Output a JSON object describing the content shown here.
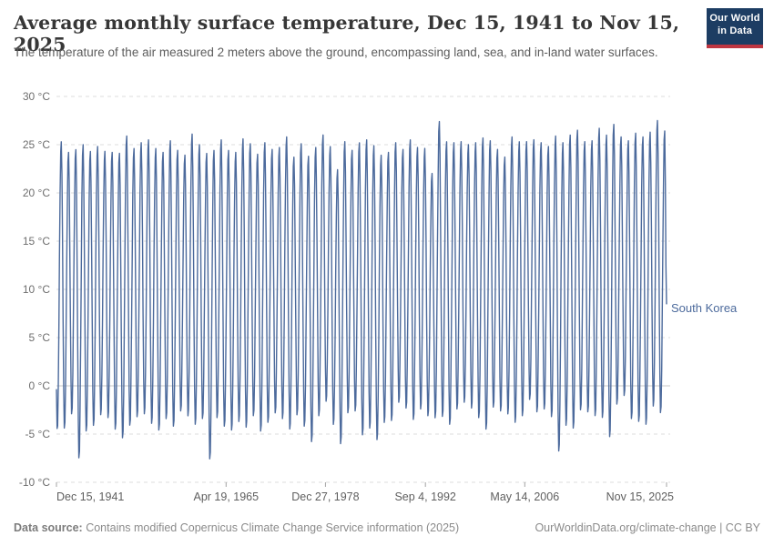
{
  "header": {
    "title": "Average monthly surface temperature, Dec 15, 1941 to Nov 15, 2025",
    "subtitle": "The temperature of the air measured 2 meters above the ground, encompassing land, sea, and in-land water surfaces.",
    "logo": {
      "line1": "Our World",
      "line2": "in Data"
    }
  },
  "colors": {
    "line": "#4c6a9c",
    "grid": "#dcdcdc",
    "zero_line": "#c8c8c8",
    "tick_mark": "#a3a3a3",
    "logo_bg": "#1d3d63",
    "logo_bar": "#bf3641"
  },
  "chart_data": {
    "type": "line",
    "title": "Average monthly surface temperature, Dec 15, 1941 to Nov 15, 2025",
    "series_label": "South Korea",
    "legend_position": "right",
    "grid": true,
    "y_axis": {
      "min": -10,
      "max": 30,
      "unit": "°C",
      "ticks": [
        {
          "value": 30,
          "label": "30 °C"
        },
        {
          "value": 25,
          "label": "25 °C"
        },
        {
          "value": 20,
          "label": "20 °C"
        },
        {
          "value": 15,
          "label": "15 °C"
        },
        {
          "value": 10,
          "label": "10 °C"
        },
        {
          "value": 5,
          "label": "5 °C"
        },
        {
          "value": 0,
          "label": "0 °C"
        },
        {
          "value": -5,
          "label": "-5 °C"
        },
        {
          "value": -10,
          "label": "-10 °C"
        }
      ]
    },
    "x_axis": {
      "total_months": 1007,
      "ticks": [
        {
          "label": "Dec 15, 1941",
          "month_index": 0
        },
        {
          "label": "Apr 19, 1965",
          "month_index": 280
        },
        {
          "label": "Dec 27, 1978",
          "month_index": 444
        },
        {
          "label": "Sep 4, 1992",
          "month_index": 609
        },
        {
          "label": "May 14, 2006",
          "month_index": 773
        },
        {
          "label": "Nov 15, 2025",
          "month_index": 1007
        }
      ]
    },
    "start_point": {
      "date": "Dec 1941",
      "value": -0.4
    },
    "end_point": {
      "date": "Nov 2025",
      "value": 8.5
    },
    "years": [
      1942,
      1943,
      1944,
      1945,
      1946,
      1947,
      1948,
      1949,
      1950,
      1951,
      1952,
      1953,
      1954,
      1955,
      1956,
      1957,
      1958,
      1959,
      1960,
      1961,
      1962,
      1963,
      1964,
      1965,
      1966,
      1967,
      1968,
      1969,
      1970,
      1971,
      1972,
      1973,
      1974,
      1975,
      1976,
      1977,
      1978,
      1979,
      1980,
      1981,
      1982,
      1983,
      1984,
      1985,
      1986,
      1987,
      1988,
      1989,
      1990,
      1991,
      1992,
      1993,
      1994,
      1995,
      1996,
      1997,
      1998,
      1999,
      2000,
      2001,
      2002,
      2003,
      2004,
      2005,
      2006,
      2007,
      2008,
      2009,
      2010,
      2011,
      2012,
      2013,
      2014,
      2015,
      2016,
      2017,
      2018,
      2019,
      2020,
      2021,
      2022,
      2023,
      2024,
      2025
    ],
    "summer_max": [
      25.4,
      24.3,
      24.6,
      25.1,
      24.4,
      24.9,
      24.4,
      24.3,
      24.2,
      26.0,
      24.7,
      25.3,
      25.6,
      24.7,
      24.3,
      25.5,
      24.5,
      24.0,
      26.2,
      25.1,
      24.2,
      24.5,
      25.6,
      24.5,
      24.3,
      25.7,
      25.2,
      24.1,
      25.3,
      24.6,
      24.8,
      25.9,
      23.8,
      25.2,
      23.9,
      24.8,
      26.1,
      24.9,
      22.5,
      25.4,
      24.5,
      25.3,
      25.6,
      25.0,
      24.0,
      24.3,
      25.3,
      24.6,
      25.6,
      24.8,
      24.7,
      22.1,
      27.5,
      25.4,
      25.3,
      25.4,
      25.1,
      25.3,
      25.8,
      25.5,
      24.6,
      23.8,
      25.9,
      25.4,
      25.4,
      25.6,
      25.3,
      24.9,
      26.0,
      25.3,
      26.1,
      26.6,
      25.4,
      25.5,
      26.8,
      26.1,
      27.2,
      25.9,
      25.5,
      26.3,
      25.9,
      26.4,
      27.6,
      26.6
    ],
    "winter_min": [
      -5.0,
      -4.6,
      -3.1,
      -7.7,
      -4.9,
      -4.3,
      -3.2,
      -3.5,
      -4.7,
      -5.6,
      -4.3,
      -3.4,
      -3.1,
      -4.1,
      -4.8,
      -3.6,
      -4.4,
      -2.8,
      -3.3,
      -4.2,
      -3.6,
      -7.8,
      -3.5,
      -4.4,
      -4.8,
      -3.9,
      -4.5,
      -3.3,
      -4.9,
      -4.0,
      -3.0,
      -3.6,
      -4.7,
      -3.2,
      -4.4,
      -6.0,
      -3.3,
      -1.8,
      -4.2,
      -6.2,
      -3.0,
      -2.8,
      -5.3,
      -4.6,
      -5.8,
      -4.0,
      -3.8,
      -1.9,
      -2.5,
      -3.7,
      -2.6,
      -3.3,
      -3.5,
      -3.4,
      -4.2,
      -2.6,
      -1.9,
      -2.5,
      -3.5,
      -4.7,
      -2.4,
      -2.8,
      -3.1,
      -4.0,
      -3.3,
      -1.6,
      -2.9,
      -2.6,
      -3.4,
      -7.0,
      -4.3,
      -4.6,
      -2.7,
      -2.9,
      -3.3,
      -3.5,
      -5.5,
      -2.1,
      -1.2,
      -3.6,
      -3.9,
      -4.2,
      -2.3,
      -3.0
    ]
  },
  "footer": {
    "source_label": "Data source:",
    "source_rest": " Contains modified Copernicus Climate Change Service information (2025)",
    "credit": "OurWorldinData.org/climate-change | CC BY"
  }
}
